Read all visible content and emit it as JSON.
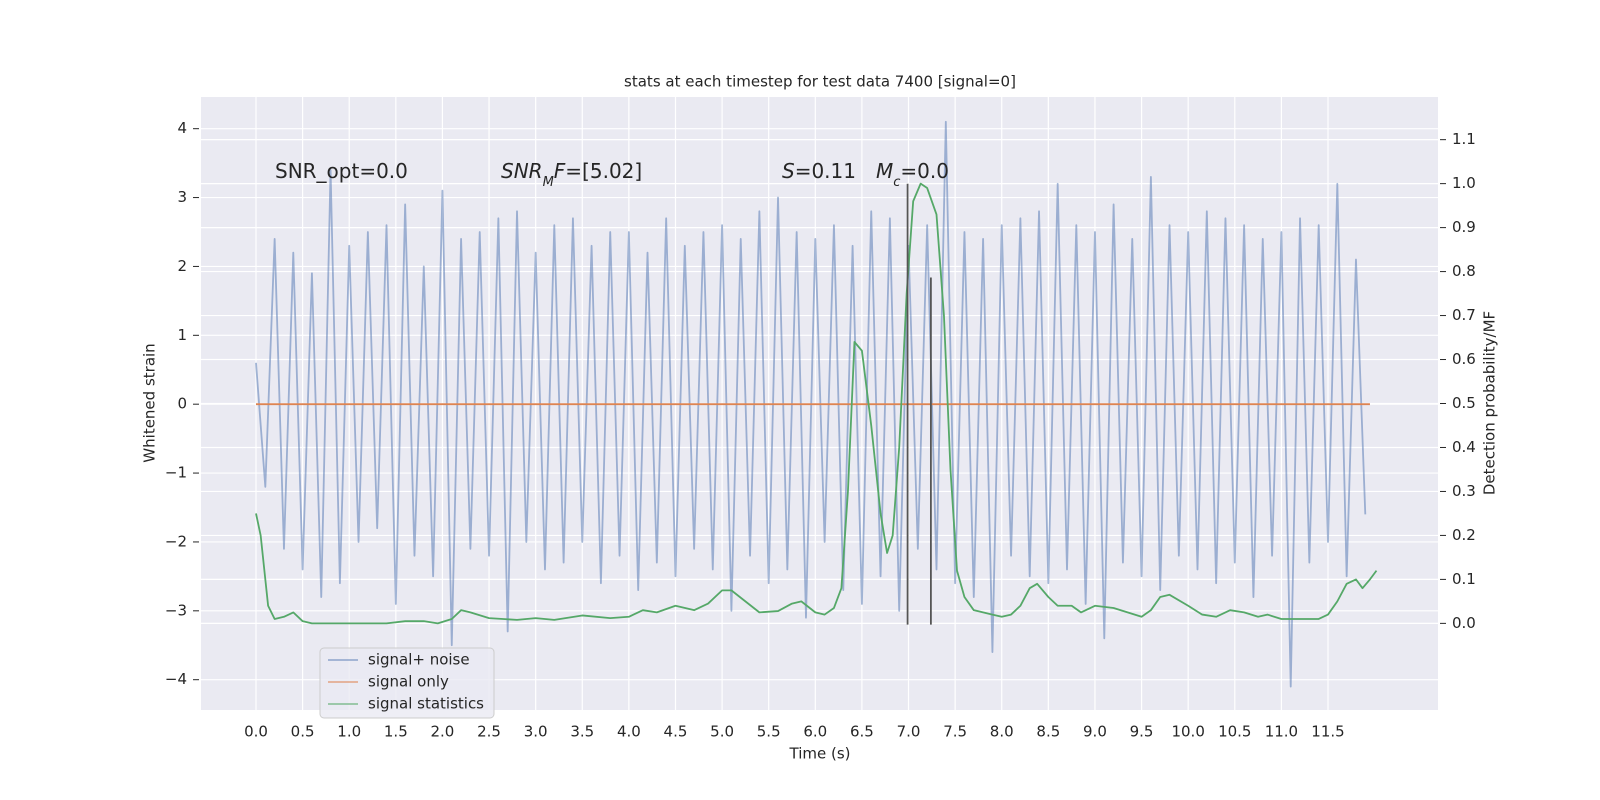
{
  "chart_data": {
    "type": "line",
    "title": "stats at each timestep for test data 7400 [signal=0]",
    "x_label": "Time (s)",
    "y_label": "Whitened strain",
    "y2_label": "Detection probability/MF",
    "xlim": [
      -0.59,
      12.68
    ],
    "ylim": [
      -4.44,
      4.46
    ],
    "y2lim": [
      -0.197,
      1.197
    ],
    "grid": true,
    "background": "#eaeaf2",
    "legend_position": "lower left",
    "xticks": [
      {
        "value": 0,
        "label": "0.0"
      },
      {
        "value": 0.5,
        "label": "0.5"
      },
      {
        "value": 1,
        "label": "1.0"
      },
      {
        "value": 1.5,
        "label": "1.5"
      },
      {
        "value": 2,
        "label": "2.0"
      },
      {
        "value": 2.5,
        "label": "2.5"
      },
      {
        "value": 3,
        "label": "3.0"
      },
      {
        "value": 3.5,
        "label": "3.5"
      },
      {
        "value": 4,
        "label": "4.0"
      },
      {
        "value": 4.5,
        "label": "4.5"
      },
      {
        "value": 5,
        "label": "5.0"
      },
      {
        "value": 5.5,
        "label": "5.5"
      },
      {
        "value": 6,
        "label": "6.0"
      },
      {
        "value": 6.5,
        "label": "6.5"
      },
      {
        "value": 7,
        "label": "7.0"
      },
      {
        "value": 7.5,
        "label": "7.5"
      },
      {
        "value": 8,
        "label": "8.0"
      },
      {
        "value": 8.5,
        "label": "8.5"
      },
      {
        "value": 9,
        "label": "9.0"
      },
      {
        "value": 9.5,
        "label": "9.5"
      },
      {
        "value": 10,
        "label": "10.0"
      },
      {
        "value": 10.5,
        "label": "10.5"
      },
      {
        "value": 11,
        "label": "11.0"
      },
      {
        "value": 11.5,
        "label": "11.5"
      }
    ],
    "yticks": [
      {
        "value": -4,
        "label": "−4"
      },
      {
        "value": -3,
        "label": "−3"
      },
      {
        "value": -2,
        "label": "−2"
      },
      {
        "value": -1,
        "label": "−1"
      },
      0,
      1,
      2,
      3,
      4
    ],
    "y2ticks": [
      {
        "value": 0,
        "label": "0.0"
      },
      0.1,
      0.2,
      0.3,
      0.4,
      0.5,
      0.6,
      0.7,
      0.8,
      0.9,
      {
        "value": 1,
        "label": "1.0"
      },
      1.1
    ],
    "series": [
      {
        "name": "signal+ noise",
        "color": "#4c72b0",
        "alpha": 0.5,
        "x": [
          0.0,
          0.1,
          0.2,
          0.3,
          0.4,
          0.5,
          0.6,
          0.7,
          0.8,
          0.9,
          1.0,
          1.1,
          1.2,
          1.3,
          1.4,
          1.5,
          1.6,
          1.7,
          1.8,
          1.9,
          2.0,
          2.1,
          2.2,
          2.3,
          2.4,
          2.5,
          2.6,
          2.7,
          2.8,
          2.9,
          3.0,
          3.1,
          3.2,
          3.3,
          3.4,
          3.5,
          3.6,
          3.7,
          3.8,
          3.9,
          4.0,
          4.1,
          4.2,
          4.3,
          4.4,
          4.5,
          4.6,
          4.7,
          4.8,
          4.9,
          5.0,
          5.1,
          5.2,
          5.3,
          5.4,
          5.5,
          5.6,
          5.7,
          5.8,
          5.9,
          6.0,
          6.1,
          6.2,
          6.3,
          6.4,
          6.5,
          6.6,
          6.7,
          6.8,
          6.9,
          7.0,
          7.1,
          7.2,
          7.3,
          7.4,
          7.5,
          7.6,
          7.7,
          7.8,
          7.9,
          8.0,
          8.1,
          8.2,
          8.3,
          8.4,
          8.5,
          8.6,
          8.7,
          8.8,
          8.9,
          9.0,
          9.1,
          9.2,
          9.3,
          9.4,
          9.5,
          9.6,
          9.7,
          9.8,
          9.9,
          10.0,
          10.1,
          10.2,
          10.3,
          10.4,
          10.5,
          10.6,
          10.7,
          10.8,
          10.9,
          11.0,
          11.1,
          11.2,
          11.3,
          11.4,
          11.5,
          11.6,
          11.7,
          11.8,
          11.9
        ],
        "values": [
          0.6,
          -1.2,
          2.4,
          -2.1,
          2.2,
          -2.4,
          1.9,
          -2.8,
          3.4,
          -2.6,
          2.3,
          -2.0,
          2.5,
          -1.8,
          2.6,
          -2.9,
          2.9,
          -2.2,
          2.0,
          -2.5,
          3.1,
          -3.5,
          2.4,
          -2.1,
          2.5,
          -2.2,
          2.7,
          -3.3,
          2.8,
          -2.0,
          2.2,
          -2.4,
          2.6,
          -2.3,
          2.7,
          -2.0,
          2.3,
          -2.6,
          2.5,
          -2.2,
          2.5,
          -2.7,
          2.2,
          -2.3,
          2.7,
          -2.5,
          2.3,
          -2.1,
          2.5,
          -2.4,
          2.6,
          -3.0,
          2.4,
          -2.2,
          2.8,
          -2.6,
          3.0,
          -2.4,
          2.5,
          -3.1,
          2.4,
          -2.0,
          2.6,
          -2.7,
          2.3,
          -2.9,
          2.8,
          -2.5,
          2.7,
          -3.0,
          2.3,
          -2.1,
          2.6,
          -2.4,
          4.1,
          -2.6,
          2.5,
          -2.8,
          2.4,
          -3.6,
          2.6,
          -2.2,
          2.7,
          -2.5,
          2.8,
          -2.6,
          3.2,
          -2.4,
          2.6,
          -2.9,
          2.5,
          -3.4,
          2.9,
          -2.3,
          2.4,
          -2.5,
          3.3,
          -2.7,
          2.6,
          -2.2,
          2.5,
          -2.4,
          2.8,
          -2.6,
          2.7,
          -2.3,
          2.6,
          -2.8,
          2.4,
          -2.2,
          2.5,
          -4.1,
          2.7,
          -2.3,
          2.6,
          -2.0,
          3.2,
          -2.5,
          2.1,
          -1.6
        ]
      },
      {
        "name": "signal only",
        "color": "#dd8452",
        "x": [
          0.0,
          11.95
        ],
        "values": [
          0,
          0
        ]
      },
      {
        "name": "signal statistics",
        "color": "#55a868",
        "axis": "y2",
        "x": [
          0.0,
          0.05,
          0.13,
          0.2,
          0.3,
          0.4,
          0.5,
          0.6,
          0.8,
          1.0,
          1.2,
          1.4,
          1.6,
          1.8,
          1.95,
          2.1,
          2.2,
          2.3,
          2.5,
          2.8,
          3.0,
          3.2,
          3.5,
          3.8,
          4.0,
          4.15,
          4.3,
          4.5,
          4.7,
          4.85,
          5.0,
          5.1,
          5.25,
          5.4,
          5.6,
          5.75,
          5.85,
          6.0,
          6.1,
          6.2,
          6.28,
          6.35,
          6.42,
          6.5,
          6.6,
          6.7,
          6.77,
          6.83,
          6.9,
          6.98,
          7.05,
          7.13,
          7.2,
          7.3,
          7.38,
          7.45,
          7.52,
          7.6,
          7.7,
          7.9,
          8.0,
          8.1,
          8.2,
          8.3,
          8.38,
          8.5,
          8.6,
          8.75,
          8.85,
          9.0,
          9.2,
          9.35,
          9.5,
          9.6,
          9.7,
          9.8,
          10.0,
          10.15,
          10.3,
          10.45,
          10.6,
          10.75,
          10.85,
          11.0,
          11.2,
          11.4,
          11.5,
          11.6,
          11.7,
          11.8,
          11.87,
          11.95,
          12.02
        ],
        "values": [
          0.25,
          0.2,
          0.04,
          0.01,
          0.015,
          0.025,
          0.005,
          0.0,
          0.0,
          0.0,
          0.0,
          0.0,
          0.005,
          0.005,
          0.0,
          0.01,
          0.03,
          0.025,
          0.012,
          0.008,
          0.012,
          0.008,
          0.018,
          0.012,
          0.015,
          0.03,
          0.025,
          0.04,
          0.03,
          0.045,
          0.075,
          0.075,
          0.05,
          0.025,
          0.028,
          0.045,
          0.05,
          0.025,
          0.02,
          0.035,
          0.08,
          0.3,
          0.64,
          0.62,
          0.45,
          0.25,
          0.16,
          0.2,
          0.4,
          0.75,
          0.96,
          1.0,
          0.99,
          0.93,
          0.7,
          0.35,
          0.12,
          0.06,
          0.03,
          0.02,
          0.015,
          0.02,
          0.04,
          0.08,
          0.09,
          0.06,
          0.04,
          0.04,
          0.025,
          0.04,
          0.035,
          0.025,
          0.015,
          0.03,
          0.06,
          0.065,
          0.04,
          0.02,
          0.015,
          0.03,
          0.025,
          0.015,
          0.02,
          0.01,
          0.01,
          0.01,
          0.02,
          0.05,
          0.09,
          0.1,
          0.08,
          0.1,
          0.12
        ]
      }
    ],
    "vlines": [
      {
        "x": 6.99,
        "ymin": -3.2,
        "ymax": 3.2,
        "color": "#555555"
      },
      {
        "x": 7.24,
        "ymin": -3.2,
        "ymax": 1.84,
        "color": "#555555"
      }
    ],
    "annotations": [
      {
        "segments": [
          {
            "text": "SNR_opt=0.0"
          }
        ]
      },
      {
        "segments": [
          {
            "text": "SNR",
            "italic": true
          },
          {
            "text": "M",
            "italic": true,
            "sub": true
          },
          {
            "text": "F",
            "italic": true
          },
          {
            "text": "=[5.02]"
          }
        ]
      },
      {
        "segments": [
          {
            "text": "S",
            "italic": true
          },
          {
            "text": "=0.11"
          }
        ]
      },
      {
        "segments": [
          {
            "text": "M",
            "italic": true
          },
          {
            "text": "c",
            "italic": true,
            "sub": true
          },
          {
            "text": "=0.0"
          }
        ]
      }
    ]
  }
}
